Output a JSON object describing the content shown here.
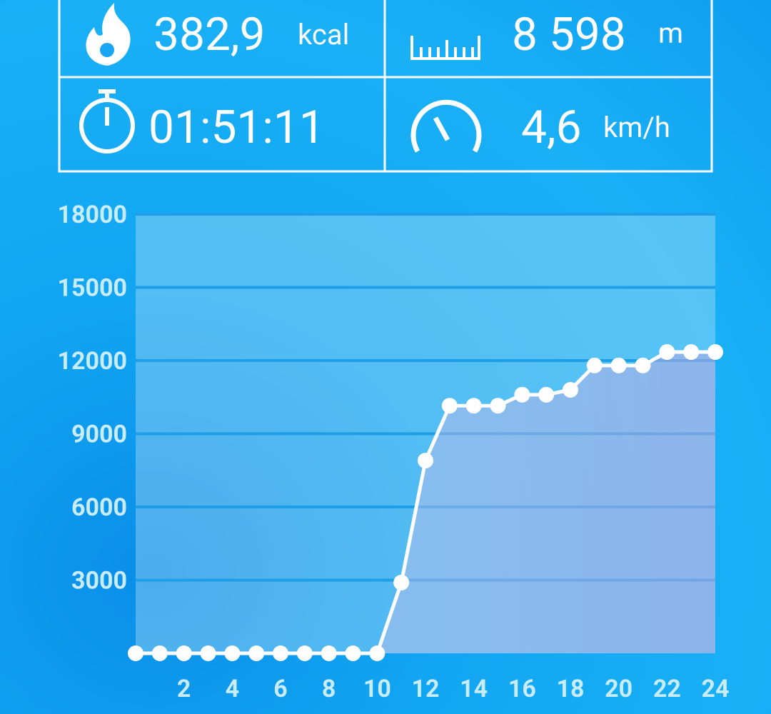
{
  "stats": [
    {
      "value": "382,9",
      "unit": "kcal"
    },
    {
      "value": "8 598",
      "unit": "m"
    },
    {
      "value": "01:51:11"
    },
    {
      "value": "4,6",
      "unit": "km/h"
    }
  ],
  "chart_data": {
    "type": "line",
    "x": [
      0,
      1,
      2,
      3,
      4,
      5,
      6,
      7,
      8,
      9,
      10,
      11,
      12,
      13,
      14,
      15,
      16,
      17,
      18,
      19,
      20,
      21,
      22,
      23,
      24
    ],
    "series": [
      {
        "color": "#ffffff",
        "values": [
          0,
          0,
          0,
          0,
          0,
          0,
          0,
          0,
          0,
          0,
          0,
          2900,
          7900,
          10150,
          10150,
          10150,
          10600,
          10600,
          10800,
          11800,
          11800,
          11800,
          12350,
          12350,
          12350
        ]
      }
    ],
    "xlim": [
      0,
      24
    ],
    "xticks": [
      2,
      4,
      6,
      8,
      10,
      12,
      14,
      16,
      18,
      20,
      22,
      24
    ],
    "ylim": [
      0,
      18000
    ],
    "yticks": [
      3000,
      6000,
      9000,
      12000,
      15000,
      18000
    ],
    "grid": true
  }
}
